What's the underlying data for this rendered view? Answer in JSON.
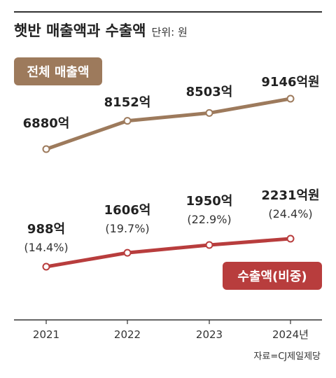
{
  "header": {
    "title": "햇반 매출액과 수출액",
    "unit": "단위: 원"
  },
  "source": "자료=CJ제일제당",
  "colors": {
    "total": "#9d7a5c",
    "export": "#b83d3d",
    "axis": "#333333"
  },
  "chart_data": {
    "type": "line",
    "categories": [
      "2021",
      "2022",
      "2023",
      "2024년"
    ],
    "series": [
      {
        "name": "전체 매출액",
        "values": [
          6880,
          8152,
          8503,
          9146
        ],
        "labels": [
          "6880억",
          "8152억",
          "8503억",
          "9146억원"
        ]
      },
      {
        "name": "수출액(비중)",
        "values": [
          988,
          1606,
          1950,
          2231
        ],
        "labels": [
          "988억",
          "1606억",
          "1950억",
          "2231억원"
        ],
        "shares": [
          "(14.4%)",
          "(19.7%)",
          "(22.9%)",
          "(24.4%)"
        ]
      }
    ]
  }
}
